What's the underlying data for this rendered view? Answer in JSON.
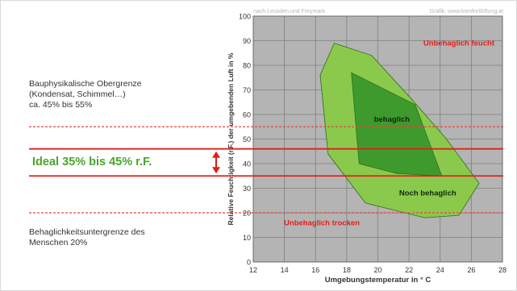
{
  "notes": {
    "upper_limit_lines": [
      "Bauphysikalische Obergrenze",
      "(Kondensat, Schimmel…)",
      "ca. 45% bis 55%"
    ],
    "ideal": "Ideal 35% bis 45% r.F.",
    "lower_limit_lines": [
      "Behaglichkeitsuntergrenze des",
      "Menschen 20%"
    ]
  },
  "credits": {
    "left": "nach Leusden und Freymark",
    "right": "Grafik: www.komfortlüftung.at"
  },
  "colors": {
    "red_line": "#e0201a",
    "dashed_line": "#e6453e",
    "ideal_text": "#4aa52c",
    "arrow": "#e0201a",
    "plot_bg": "#b4b4b4",
    "grid": "#7f7f7f",
    "light_zone": "#8bc94c",
    "dark_zone": "#3f9a2d",
    "zone_stroke": "#2e6b1f",
    "zone_label_red": "#e0201a",
    "zone_label_dark": "#0d2a08"
  },
  "chart_data": {
    "type": "area",
    "xlabel": "Umgebungstemperatur in ° C",
    "ylabel": "Relative Feuchtigkeit (r.F.) der umgebenden Luft in %",
    "xlim": [
      12,
      28
    ],
    "ylim": [
      0,
      100
    ],
    "x_ticks": [
      12,
      14,
      16,
      18,
      20,
      22,
      24,
      26,
      28
    ],
    "y_ticks": [
      0,
      10,
      20,
      30,
      40,
      50,
      60,
      70,
      80,
      90,
      100
    ],
    "grid": true,
    "series": [
      {
        "name": "Noch behaglich",
        "points": [
          [
            17.2,
            89
          ],
          [
            19.6,
            84
          ],
          [
            22.2,
            66
          ],
          [
            24.4,
            50
          ],
          [
            26.5,
            32
          ],
          [
            25.2,
            19
          ],
          [
            23.0,
            18
          ],
          [
            19.2,
            24
          ],
          [
            16.8,
            44
          ],
          [
            16.3,
            76
          ]
        ]
      },
      {
        "name": "behaglich",
        "points": [
          [
            18.3,
            77
          ],
          [
            22.4,
            64
          ],
          [
            24.1,
            35
          ],
          [
            21.2,
            36
          ],
          [
            18.8,
            40
          ]
        ]
      }
    ],
    "zone_labels": [
      {
        "text": "Unbehaglich feucht",
        "x": 25.2,
        "y": 88
      },
      {
        "text": "behaglich",
        "x": 20.9,
        "y": 57
      },
      {
        "text": "Noch behaglich",
        "x": 23.2,
        "y": 27
      },
      {
        "text": "Unbehaglich trocken",
        "x": 16.4,
        "y": 15
      }
    ],
    "reference_lines": [
      {
        "y": 55,
        "style": "dashed"
      },
      {
        "y": 46,
        "style": "solid"
      },
      {
        "y": 35,
        "style": "solid"
      },
      {
        "y": 20,
        "style": "dashed"
      }
    ]
  }
}
